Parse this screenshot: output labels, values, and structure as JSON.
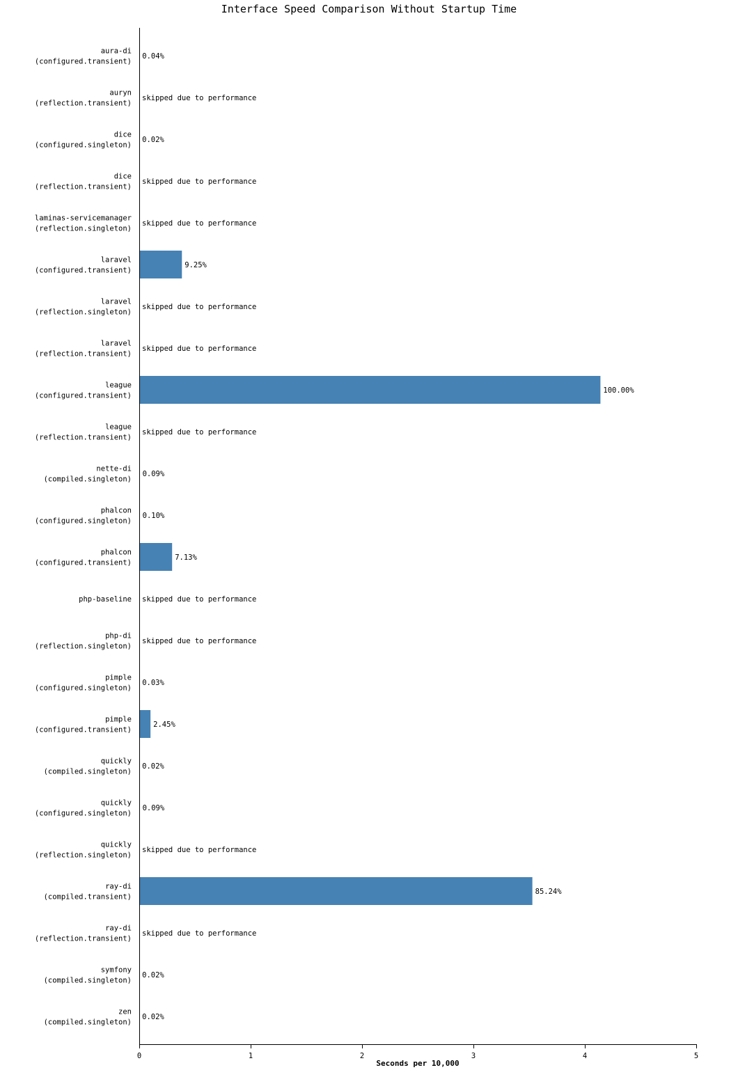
{
  "chart_data": {
    "type": "bar",
    "orientation": "horizontal",
    "title": "Interface Speed Comparison Without Startup Time",
    "xlabel": "Seconds per 10,000",
    "ylabel": "",
    "xlim": [
      0,
      5
    ],
    "xticks": [
      "0",
      "1",
      "2",
      "3",
      "4",
      "5"
    ],
    "bar_color": "#4682b4",
    "grid": false,
    "categories": [
      {
        "name": "aura-di",
        "mode": "(configured.transient)",
        "value": 0.0017,
        "label": "0.04%"
      },
      {
        "name": "auryn",
        "mode": "(reflection.transient)",
        "value": null,
        "label": "skipped due to performance"
      },
      {
        "name": "dice",
        "mode": "(configured.singleton)",
        "value": 0.0008,
        "label": "0.02%"
      },
      {
        "name": "dice",
        "mode": "(reflection.transient)",
        "value": null,
        "label": "skipped due to performance"
      },
      {
        "name": "laminas-servicemanager",
        "mode": "(reflection.singleton)",
        "value": null,
        "label": "skipped due to performance"
      },
      {
        "name": "laravel",
        "mode": "(configured.transient)",
        "value": 0.383,
        "label": "9.25%"
      },
      {
        "name": "laravel",
        "mode": "(reflection.singleton)",
        "value": null,
        "label": "skipped due to performance"
      },
      {
        "name": "laravel",
        "mode": "(reflection.transient)",
        "value": null,
        "label": "skipped due to performance"
      },
      {
        "name": "league",
        "mode": "(configured.transient)",
        "value": 4.14,
        "label": "100.00%"
      },
      {
        "name": "league",
        "mode": "(reflection.transient)",
        "value": null,
        "label": "skipped due to performance"
      },
      {
        "name": "nette-di",
        "mode": "(compiled.singleton)",
        "value": 0.0037,
        "label": "0.09%"
      },
      {
        "name": "phalcon",
        "mode": "(configured.singleton)",
        "value": 0.0041,
        "label": "0.10%"
      },
      {
        "name": "phalcon",
        "mode": "(configured.transient)",
        "value": 0.295,
        "label": "7.13%"
      },
      {
        "name": "php-baseline",
        "mode": "",
        "value": null,
        "label": "skipped due to performance"
      },
      {
        "name": "php-di",
        "mode": "(reflection.singleton)",
        "value": null,
        "label": "skipped due to performance"
      },
      {
        "name": "pimple",
        "mode": "(configured.singleton)",
        "value": 0.0012,
        "label": "0.03%"
      },
      {
        "name": "pimple",
        "mode": "(configured.transient)",
        "value": 0.101,
        "label": "2.45%"
      },
      {
        "name": "quickly",
        "mode": "(compiled.singleton)",
        "value": 0.0008,
        "label": "0.02%"
      },
      {
        "name": "quickly",
        "mode": "(configured.singleton)",
        "value": 0.0037,
        "label": "0.09%"
      },
      {
        "name": "quickly",
        "mode": "(reflection.singleton)",
        "value": null,
        "label": "skipped due to performance"
      },
      {
        "name": "ray-di",
        "mode": "(compiled.transient)",
        "value": 3.529,
        "label": "85.24%"
      },
      {
        "name": "ray-di",
        "mode": "(reflection.transient)",
        "value": null,
        "label": "skipped due to performance"
      },
      {
        "name": "symfony",
        "mode": "(compiled.singleton)",
        "value": 0.0008,
        "label": "0.02%"
      },
      {
        "name": "zen",
        "mode": "(compiled.singleton)",
        "value": 0.0008,
        "label": "0.02%"
      }
    ]
  }
}
